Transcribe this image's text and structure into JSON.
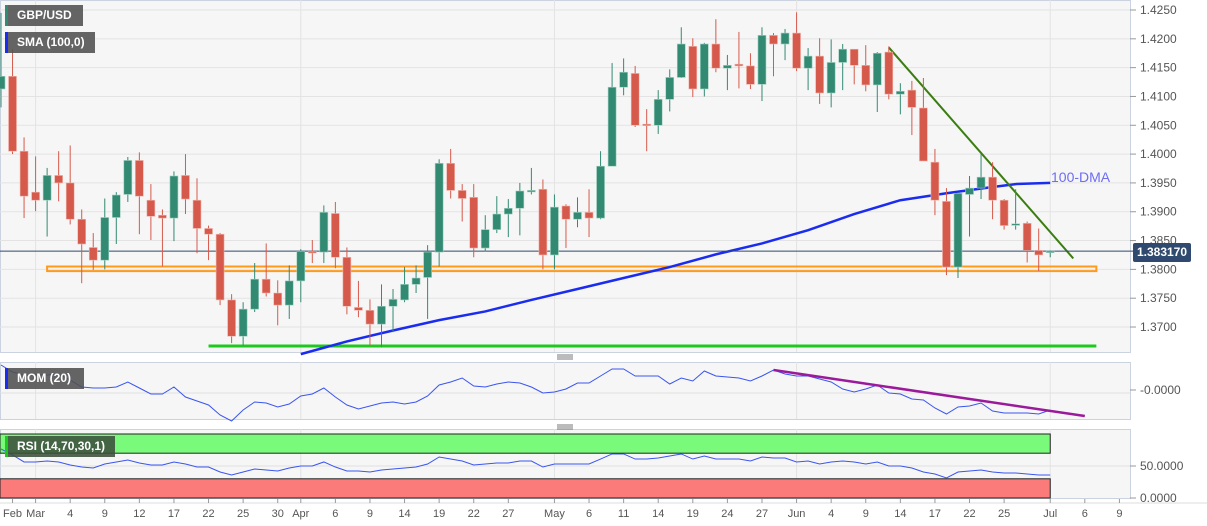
{
  "chart_data": {
    "type": "candlestick",
    "symbol": "GBP/USD",
    "indicator_labels": {
      "sma": "SMA (100,0)",
      "mom": "MOM (20)",
      "rsi": "RSI (14,70,30,1)"
    },
    "annotation_dma": "100-DMA",
    "last_price": "1.383170",
    "price_axis": {
      "ylim": [
        1.3655,
        1.426
      ],
      "ticks": [
        "1.4250",
        "1.4200",
        "1.4150",
        "1.4100",
        "1.4050",
        "1.4000",
        "1.3950",
        "1.3900",
        "1.3850",
        "1.3800",
        "1.3750",
        "1.3700"
      ]
    },
    "mom_axis": {
      "ticks": [
        "-0.0000"
      ]
    },
    "rsi_axis": {
      "ticks": [
        "50.0000",
        "0.0000"
      ],
      "overbought": 70,
      "oversold": 30
    },
    "x_ticks": [
      {
        "label": "Feb",
        "bar": 1
      },
      {
        "label": "Mar",
        "bar": 3
      },
      {
        "label": "4",
        "bar": 6
      },
      {
        "label": "9",
        "bar": 9
      },
      {
        "label": "12",
        "bar": 12
      },
      {
        "label": "17",
        "bar": 15
      },
      {
        "label": "22",
        "bar": 18
      },
      {
        "label": "25",
        "bar": 21
      },
      {
        "label": "30",
        "bar": 24
      },
      {
        "label": "Apr",
        "bar": 26
      },
      {
        "label": "6",
        "bar": 29
      },
      {
        "label": "9",
        "bar": 32
      },
      {
        "label": "14",
        "bar": 35
      },
      {
        "label": "19",
        "bar": 38
      },
      {
        "label": "22",
        "bar": 41
      },
      {
        "label": "27",
        "bar": 44
      },
      {
        "label": "May",
        "bar": 48
      },
      {
        "label": "6",
        "bar": 51
      },
      {
        "label": "11",
        "bar": 54
      },
      {
        "label": "14",
        "bar": 57
      },
      {
        "label": "19",
        "bar": 60
      },
      {
        "label": "24",
        "bar": 63
      },
      {
        "label": "27",
        "bar": 66
      },
      {
        "label": "Jun",
        "bar": 69
      },
      {
        "label": "4",
        "bar": 72
      },
      {
        "label": "9",
        "bar": 75
      },
      {
        "label": "14",
        "bar": 78
      },
      {
        "label": "17",
        "bar": 81
      },
      {
        "label": "22",
        "bar": 84
      },
      {
        "label": "25",
        "bar": 87
      },
      {
        "label": "Jul",
        "bar": 91
      },
      {
        "label": "6",
        "bar": 94
      },
      {
        "label": "9",
        "bar": 97
      }
    ],
    "month_gridlines_bars": [
      3,
      26,
      48,
      69,
      91
    ],
    "ohlc": [
      [
        1.4113,
        1.4245,
        1.4081,
        1.4135
      ],
      [
        1.4135,
        1.4182,
        1.4,
        1.4005
      ],
      [
        1.4005,
        1.4029,
        1.3889,
        1.3927
      ],
      [
        1.3934,
        1.3996,
        1.3901,
        1.392
      ],
      [
        1.392,
        1.3976,
        1.3857,
        1.3963
      ],
      [
        1.3963,
        1.4005,
        1.3918,
        1.395
      ],
      [
        1.395,
        1.4015,
        1.3878,
        1.3887
      ],
      [
        1.3887,
        1.3904,
        1.3776,
        1.3844
      ],
      [
        1.3838,
        1.3863,
        1.3799,
        1.3816
      ],
      [
        1.3816,
        1.3923,
        1.38,
        1.389
      ],
      [
        1.389,
        1.3934,
        1.3844,
        1.3929
      ],
      [
        1.393,
        1.3995,
        1.3917,
        1.3989
      ],
      [
        1.3989,
        1.4003,
        1.3861,
        1.3927
      ],
      [
        1.392,
        1.3948,
        1.3851,
        1.3892
      ],
      [
        1.3894,
        1.3904,
        1.3805,
        1.3889
      ],
      [
        1.3889,
        1.397,
        1.3849,
        1.3962
      ],
      [
        1.3963,
        1.4,
        1.3896,
        1.3922
      ],
      [
        1.392,
        1.3958,
        1.3828,
        1.3871
      ],
      [
        1.3871,
        1.3876,
        1.3816,
        1.3861
      ],
      [
        1.3861,
        1.3863,
        1.3738,
        1.3747
      ],
      [
        1.3747,
        1.3757,
        1.3672,
        1.3684
      ],
      [
        1.3684,
        1.3743,
        1.3668,
        1.3731
      ],
      [
        1.3731,
        1.3811,
        1.3726,
        1.3783
      ],
      [
        1.3783,
        1.3845,
        1.3753,
        1.3759
      ],
      [
        1.3759,
        1.3781,
        1.3703,
        1.3738
      ],
      [
        1.3738,
        1.3807,
        1.3714,
        1.378
      ],
      [
        1.378,
        1.3835,
        1.3743,
        1.3831
      ],
      [
        1.3831,
        1.3851,
        1.3811,
        1.383
      ],
      [
        1.383,
        1.3911,
        1.3811,
        1.3899
      ],
      [
        1.3897,
        1.3917,
        1.3802,
        1.3821
      ],
      [
        1.3821,
        1.3838,
        1.3722,
        1.3736
      ],
      [
        1.3734,
        1.378,
        1.3717,
        1.3729
      ],
      [
        1.3729,
        1.3748,
        1.3668,
        1.3705
      ],
      [
        1.3705,
        1.3774,
        1.3665,
        1.3736
      ],
      [
        1.3736,
        1.3766,
        1.3691,
        1.3748
      ],
      [
        1.3747,
        1.3804,
        1.3743,
        1.3774
      ],
      [
        1.3774,
        1.3807,
        1.3759,
        1.3785
      ],
      [
        1.3786,
        1.3842,
        1.3714,
        1.383
      ],
      [
        1.383,
        1.3991,
        1.3805,
        1.3984
      ],
      [
        1.3984,
        1.4009,
        1.3923,
        1.3937
      ],
      [
        1.3937,
        1.3948,
        1.3883,
        1.3923
      ],
      [
        1.3925,
        1.3948,
        1.3821,
        1.3837
      ],
      [
        1.3837,
        1.3894,
        1.3831,
        1.3869
      ],
      [
        1.3869,
        1.3927,
        1.3863,
        1.3896
      ],
      [
        1.3896,
        1.3922,
        1.3856,
        1.3906
      ],
      [
        1.3906,
        1.395,
        1.3859,
        1.3936
      ],
      [
        1.3936,
        1.3976,
        1.393,
        1.3937
      ],
      [
        1.3939,
        1.3956,
        1.38,
        1.3825
      ],
      [
        1.3825,
        1.393,
        1.38,
        1.3908
      ],
      [
        1.391,
        1.3913,
        1.3837,
        1.3887
      ],
      [
        1.3887,
        1.3925,
        1.3873,
        1.3899
      ],
      [
        1.3899,
        1.3939,
        1.3856,
        1.3889
      ],
      [
        1.3889,
        1.4005,
        1.3887,
        1.3979
      ],
      [
        1.3979,
        1.4158,
        1.3979,
        1.4116
      ],
      [
        1.4116,
        1.4166,
        1.4102,
        1.4142
      ],
      [
        1.414,
        1.4153,
        1.4047,
        1.405
      ],
      [
        1.4052,
        1.4078,
        1.4005,
        1.405
      ],
      [
        1.405,
        1.4111,
        1.4035,
        1.4095
      ],
      [
        1.4095,
        1.4147,
        1.4074,
        1.4133
      ],
      [
        1.4133,
        1.422,
        1.4132,
        1.4191
      ],
      [
        1.4187,
        1.4201,
        1.4099,
        1.4113
      ],
      [
        1.4113,
        1.4193,
        1.41,
        1.4191
      ],
      [
        1.4191,
        1.4234,
        1.4142,
        1.4149
      ],
      [
        1.4149,
        1.4172,
        1.4111,
        1.4154
      ],
      [
        1.4156,
        1.4212,
        1.4114,
        1.4153
      ],
      [
        1.4153,
        1.4175,
        1.4113,
        1.4121
      ],
      [
        1.4121,
        1.422,
        1.4092,
        1.4206
      ],
      [
        1.4206,
        1.421,
        1.4135,
        1.4191
      ],
      [
        1.4191,
        1.4217,
        1.4163,
        1.421
      ],
      [
        1.421,
        1.4246,
        1.4144,
        1.4149
      ],
      [
        1.4149,
        1.4184,
        1.4111,
        1.417
      ],
      [
        1.417,
        1.4201,
        1.4087,
        1.4106
      ],
      [
        1.4106,
        1.4199,
        1.4081,
        1.4159
      ],
      [
        1.4159,
        1.4191,
        1.4111,
        1.4182
      ],
      [
        1.4182,
        1.4182,
        1.4121,
        1.4154
      ],
      [
        1.4154,
        1.4189,
        1.4109,
        1.412
      ],
      [
        1.412,
        1.4177,
        1.4073,
        1.4175
      ],
      [
        1.4177,
        1.4187,
        1.4095,
        1.4104
      ],
      [
        1.4104,
        1.4123,
        1.4069,
        1.4109
      ],
      [
        1.4111,
        1.4127,
        1.4033,
        1.4081
      ],
      [
        1.408,
        1.4132,
        1.3988,
        1.3988
      ],
      [
        1.3986,
        1.4009,
        1.3894,
        1.392
      ],
      [
        1.3918,
        1.3941,
        1.379,
        1.3804
      ],
      [
        1.3804,
        1.3934,
        1.3785,
        1.3932
      ],
      [
        1.393,
        1.3962,
        1.3857,
        1.3941
      ],
      [
        1.3941,
        1.4,
        1.3922,
        1.396
      ],
      [
        1.396,
        1.3986,
        1.3887,
        1.392
      ],
      [
        1.392,
        1.3922,
        1.3869,
        1.3876
      ],
      [
        1.3878,
        1.3939,
        1.3869,
        1.3879
      ],
      [
        1.388,
        1.3883,
        1.3812,
        1.3833
      ],
      [
        1.3833,
        1.3871,
        1.3797,
        1.3825
      ],
      [
        1.383,
        1.3833,
        1.3821,
        1.38317
      ]
    ],
    "sma100": [
      [
        26,
        1.3653
      ],
      [
        30,
        1.3675
      ],
      [
        34,
        1.3694
      ],
      [
        38,
        1.3712
      ],
      [
        42,
        1.3727
      ],
      [
        46,
        1.3747
      ],
      [
        50,
        1.3766
      ],
      [
        54,
        1.3785
      ],
      [
        58,
        1.3804
      ],
      [
        62,
        1.3826
      ],
      [
        66,
        1.3845
      ],
      [
        70,
        1.3868
      ],
      [
        74,
        1.3896
      ],
      [
        78,
        1.392
      ],
      [
        82,
        1.3932
      ],
      [
        86,
        1.3943
      ],
      [
        88,
        1.3948
      ],
      [
        91,
        1.395
      ]
    ],
    "support_zone": {
      "from_bar": 4,
      "to_bar": 95,
      "low": 1.3797,
      "high": 1.3805
    },
    "support_line": {
      "from_bar": 18,
      "to_bar": 95,
      "price": 1.3667
    },
    "resistance_trendline": {
      "from": [
        77,
        1.4185
      ],
      "to": [
        93,
        1.3819
      ]
    },
    "mom": [
      0.028,
      0.021,
      0.018,
      0.018,
      0.018,
      0.019,
      0.013,
      0.006,
      0.005,
      0.005,
      0.006,
      0.011,
      0.005,
      -0.001,
      -0.001,
      0.006,
      -0.004,
      -0.008,
      -0.012,
      -0.022,
      -0.028,
      -0.017,
      -0.009,
      -0.01,
      -0.014,
      -0.011,
      -0.003,
      -0.001,
      0.005,
      -0.004,
      -0.012,
      -0.016,
      -0.013,
      -0.01,
      -0.009,
      -0.011,
      -0.009,
      -0.003,
      0.008,
      0.011,
      0.015,
      0.007,
      0.006,
      0.009,
      0.011,
      0.01,
      0.006,
      0.0,
      0.001,
      0.004,
      0.01,
      0.01,
      0.017,
      0.024,
      0.024,
      0.017,
      0.017,
      0.017,
      0.009,
      0.015,
      0.012,
      0.022,
      0.017,
      0.016,
      0.015,
      0.012,
      0.017,
      0.023,
      0.019,
      0.017,
      0.017,
      0.014,
      0.011,
      0.004,
      0.001,
      0.004,
      0.008,
      0.0,
      -0.001,
      -0.006,
      -0.007,
      -0.015,
      -0.021,
      -0.014,
      -0.013,
      -0.01,
      -0.018,
      -0.02,
      -0.02,
      -0.02,
      -0.021,
      -0.017
    ],
    "mom_trendline": {
      "from": [
        67,
        0.023
      ],
      "to": [
        94,
        -0.023
      ]
    },
    "rsi": [
      76.6,
      67.2,
      56.3,
      56.3,
      57.8,
      56.3,
      51.6,
      48.4,
      46.9,
      53.1,
      56.3,
      59.4,
      54.7,
      51.6,
      51.6,
      56.3,
      53.1,
      48.4,
      48.4,
      40.6,
      35.9,
      40.6,
      45.3,
      43.8,
      42.2,
      46.9,
      50.0,
      50.0,
      56.3,
      48.4,
      42.2,
      42.2,
      40.6,
      43.8,
      45.3,
      46.9,
      48.4,
      53.1,
      64.1,
      60.9,
      57.8,
      51.6,
      53.1,
      54.7,
      54.7,
      57.8,
      57.8,
      48.4,
      53.1,
      53.1,
      53.1,
      53.1,
      60.9,
      68.8,
      68.8,
      60.9,
      60.9,
      62.5,
      65.6,
      68.8,
      60.9,
      65.6,
      60.9,
      60.9,
      60.9,
      57.8,
      64.1,
      62.5,
      62.5,
      56.3,
      57.8,
      53.1,
      56.3,
      57.8,
      56.3,
      53.1,
      56.3,
      50.0,
      50.0,
      46.9,
      40.6,
      37.5,
      31.3,
      40.6,
      42.2,
      43.8,
      40.6,
      39.1,
      39.1,
      37.5,
      35.9,
      35.9
    ],
    "colors": {
      "up": "#338a73",
      "down": "#d65a4b",
      "sma": "#1a2cf0",
      "trend": "#3a7d10",
      "support_line": "#1ec81e",
      "support_zone": "#ff9a1a",
      "mom_line": "#3a55f0",
      "mom_trend": "#9b1a9b",
      "rsi_line": "#3a55f0",
      "rsi_overbought": "#7afa7a",
      "rsi_oversold": "#fb7a7a",
      "last_price": "#2f4a6e",
      "dma_label": "#6d6df5"
    },
    "grid": true
  }
}
